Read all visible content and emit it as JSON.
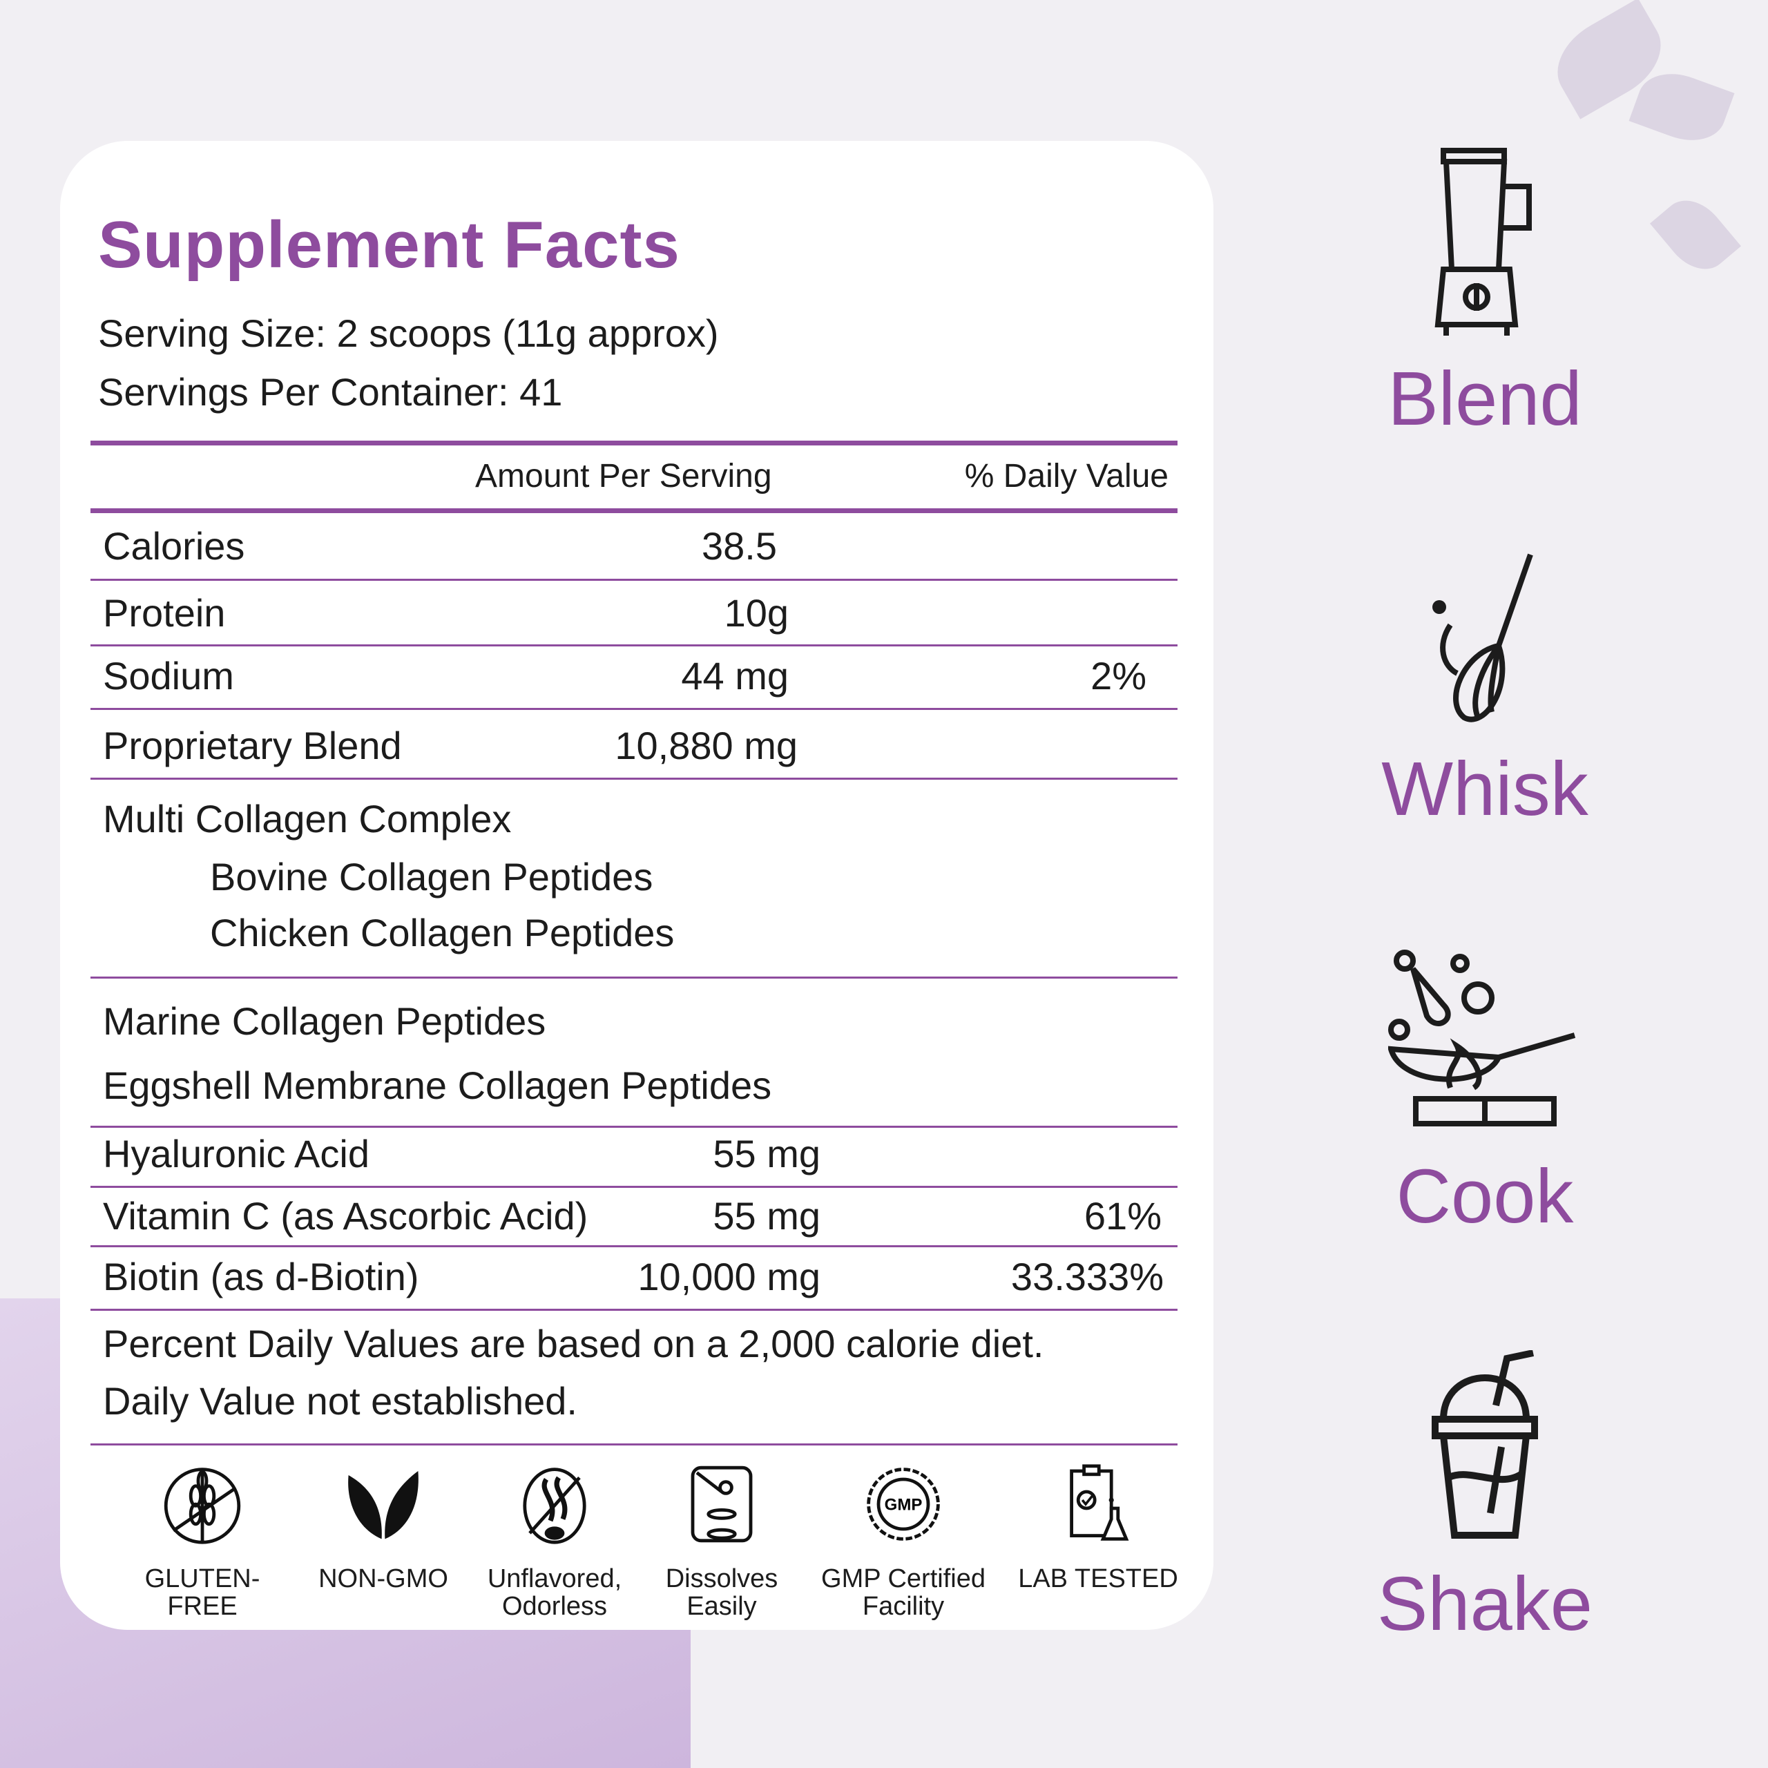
{
  "title": "Supplement Facts",
  "serving_size": "Serving Size: 2 scoops (11g approx)",
  "servings_per_container": "Servings Per Container: 41",
  "header": {
    "amount": "Amount Per Serving",
    "dv": "% Daily Value"
  },
  "rows": [
    {
      "label": "Calories",
      "amount": "38.5",
      "dv": ""
    },
    {
      "label": "Protein",
      "amount": "10g",
      "dv": ""
    },
    {
      "label": "Sodium",
      "amount": "44 mg",
      "dv": "2%"
    },
    {
      "label": "Proprietary Blend",
      "amount": "10,880 mg",
      "dv": ""
    },
    {
      "label": "Multi Collagen Complex",
      "sub": [
        "Bovine Collagen Peptides",
        "Chicken Collagen Peptides"
      ]
    },
    {
      "label": "Marine Collagen Peptides"
    },
    {
      "label": "Eggshell Membrane Collagen Peptides"
    },
    {
      "label": "Hyaluronic Acid",
      "amount": "55 mg",
      "dv": ""
    },
    {
      "label": "Vitamin C (as Ascorbic Acid)",
      "amount": "55 mg",
      "dv": "61%"
    },
    {
      "label": "Biotin (as d-Biotin)",
      "amount": "10,000 mg",
      "dv": "33.333%"
    }
  ],
  "footnotes": [
    "Percent Daily Values are based on a 2,000 calorie diet.",
    "Daily Value not established."
  ],
  "badges": [
    {
      "label": "GLUTEN-FREE",
      "icon": "wheat-crossed-icon"
    },
    {
      "label": "NON-GMO",
      "icon": "leaves-icon"
    },
    {
      "label": "Unflavored, Odorless",
      "icon": "no-odor-icon"
    },
    {
      "label": "Dissolves Easily",
      "icon": "dissolve-glass-icon"
    },
    {
      "label": "GMP Certified Facility",
      "icon": "gmp-seal-icon",
      "seal_text": "GMP"
    },
    {
      "label": "LAB TESTED",
      "icon": "lab-clipboard-icon"
    }
  ],
  "uses": [
    {
      "label": "Blend",
      "icon": "blender-icon"
    },
    {
      "label": "Whisk",
      "icon": "whisk-icon"
    },
    {
      "label": "Cook",
      "icon": "wok-icon"
    },
    {
      "label": "Shake",
      "icon": "shake-cup-icon"
    }
  ],
  "colors": {
    "accent": "#8e4c9e",
    "background": "#f1eff3",
    "card": "#ffffff",
    "text": "#1c1c1c"
  }
}
